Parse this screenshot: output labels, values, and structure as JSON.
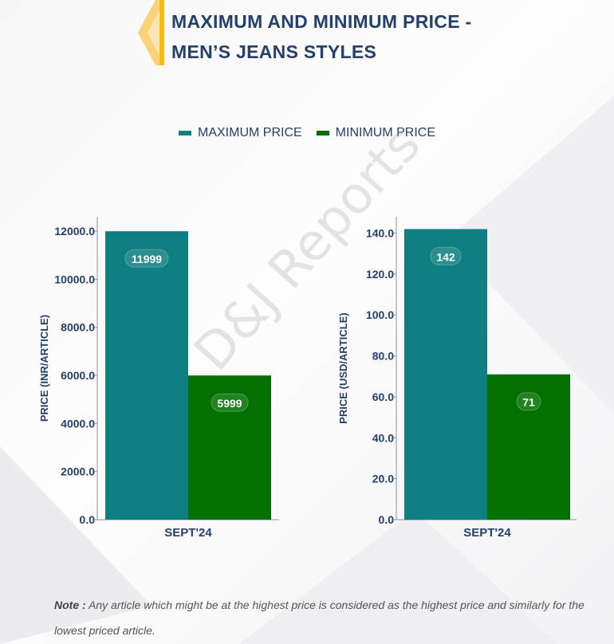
{
  "header": {
    "title_line1": "MAXIMUM AND MINIMUM PRICE -",
    "title_line2": "MEN’S JEANS STYLES"
  },
  "legend": [
    {
      "label": "MAXIMUM PRICE",
      "color": "#0e7f80"
    },
    {
      "label": "MINIMUM PRICE",
      "color": "#037102"
    }
  ],
  "watermark": "D&J Reports",
  "note": {
    "label": "Note :",
    "text": " Any article which might be at the highest price is considered as the highest price and similarly for the lowest priced article."
  },
  "chart_data": [
    {
      "type": "bar",
      "categories": [
        "SEPT'24"
      ],
      "ylabel": "PRICE (INR/ARTICLE)",
      "ylim": [
        0,
        12600
      ],
      "yticks": [
        0,
        2000,
        4000,
        6000,
        8000,
        10000,
        12000
      ],
      "tick_format_decimals": 1,
      "series": [
        {
          "name": "MAXIMUM PRICE",
          "values": [
            11999
          ],
          "color": "#0e7f80"
        },
        {
          "name": "MINIMUM PRICE",
          "values": [
            5999
          ],
          "color": "#037102"
        }
      ],
      "grid": false
    },
    {
      "type": "bar",
      "categories": [
        "SEPT'24"
      ],
      "ylabel": "PRICE (USD/ARTICLE)",
      "ylim": [
        0,
        148
      ],
      "yticks": [
        0,
        20,
        40,
        60,
        80,
        100,
        120,
        140
      ],
      "tick_format_decimals": 1,
      "series": [
        {
          "name": "MAXIMUM PRICE",
          "values": [
            142
          ],
          "color": "#0e7f80"
        },
        {
          "name": "MINIMUM PRICE",
          "values": [
            71
          ],
          "color": "#037102"
        }
      ],
      "grid": false
    }
  ]
}
